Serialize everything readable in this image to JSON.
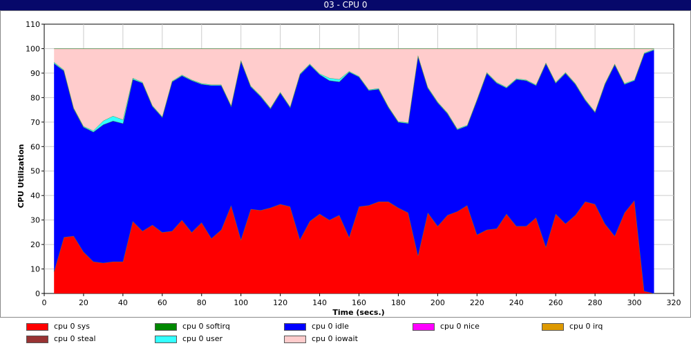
{
  "window": {
    "title": "03 - CPU 0"
  },
  "chart_data": {
    "type": "area",
    "stacked": true,
    "xlabel": "Time (secs.)",
    "ylabel": "CPU Utilization",
    "xlim": [
      0,
      320
    ],
    "ylim": [
      0,
      110
    ],
    "xticks": [
      0,
      20,
      40,
      60,
      80,
      100,
      120,
      140,
      160,
      180,
      200,
      220,
      240,
      260,
      280,
      300,
      320
    ],
    "yticks": [
      0,
      10,
      20,
      30,
      40,
      50,
      60,
      70,
      80,
      90,
      100,
      110
    ],
    "grid": true,
    "legend_position": "bottom",
    "x": [
      5,
      10,
      15,
      20,
      25,
      30,
      35,
      40,
      45,
      50,
      55,
      60,
      65,
      70,
      75,
      80,
      85,
      90,
      95,
      100,
      105,
      110,
      115,
      120,
      125,
      130,
      135,
      140,
      145,
      150,
      155,
      160,
      165,
      170,
      175,
      180,
      185,
      190,
      195,
      200,
      205,
      210,
      215,
      220,
      225,
      230,
      235,
      240,
      245,
      250,
      255,
      260,
      265,
      270,
      275,
      280,
      285,
      290,
      295,
      300,
      305,
      310
    ],
    "series": [
      {
        "name": "cpu 0 sys",
        "color": "#ff0000",
        "values": [
          9,
          23,
          23.5,
          17,
          13,
          12.5,
          13,
          13,
          29.5,
          25.5,
          28,
          25,
          25.5,
          30,
          25,
          29,
          22.5,
          26,
          36,
          22,
          34.5,
          34,
          35,
          36.5,
          35.5,
          22,
          29.5,
          32.5,
          30,
          32,
          23,
          35.5,
          36,
          37.5,
          37.5,
          35,
          33,
          15.5,
          33,
          27.5,
          32,
          33.5,
          36,
          24,
          26,
          26.5,
          32.5,
          27.5,
          27.5,
          31,
          19,
          32.5,
          28.5,
          32,
          37.5,
          36.5,
          28.5,
          23.5,
          33,
          38,
          1,
          0
        ]
      },
      {
        "name": "cpu 0 softirq",
        "color": "#008800",
        "values": [
          0,
          0,
          0,
          0,
          0,
          0,
          0,
          0,
          0,
          0,
          0,
          0,
          0,
          0,
          0,
          0,
          0,
          0,
          0,
          0,
          0,
          0,
          0,
          0,
          0,
          0,
          0,
          0,
          0,
          0,
          0,
          0,
          0,
          0,
          0,
          0,
          0,
          0,
          0,
          0,
          0,
          0,
          0,
          0,
          0,
          0,
          0,
          0,
          0,
          0,
          0,
          0,
          0,
          0,
          0,
          0,
          0,
          0,
          0,
          0,
          0,
          0
        ]
      },
      {
        "name": "cpu 0 idle",
        "color": "#0000ff",
        "values": [
          85,
          68,
          52,
          51,
          53,
          56.5,
          57.5,
          56.5,
          58,
          60.5,
          48.5,
          47,
          61,
          59,
          62,
          56.5,
          62.5,
          59,
          40.5,
          73,
          50,
          46.5,
          40.5,
          45.5,
          40.5,
          67.5,
          64,
          57,
          57,
          54.5,
          67.5,
          53,
          47,
          46,
          38.5,
          35,
          36.5,
          81.5,
          51,
          50.5,
          41.5,
          33.5,
          32.5,
          55,
          64,
          59.5,
          51.5,
          60,
          59.5,
          54,
          75,
          53.5,
          61.5,
          53.5,
          41.5,
          37.5,
          57,
          70,
          52.5,
          49,
          97,
          99.5
        ]
      },
      {
        "name": "cpu 0 nice",
        "color": "#ff00ff",
        "values": [
          0,
          0,
          0,
          0,
          0,
          0,
          0,
          0,
          0,
          0,
          0,
          0,
          0,
          0,
          0,
          0,
          0,
          0,
          0,
          0,
          0,
          0,
          0,
          0,
          0,
          0,
          0,
          0,
          0,
          0,
          0,
          0,
          0,
          0,
          0,
          0,
          0,
          0,
          0,
          0,
          0,
          0,
          0,
          0,
          0,
          0,
          0,
          0,
          0,
          0,
          0,
          0,
          0,
          0,
          0,
          0,
          0,
          0,
          0,
          0,
          0,
          0
        ]
      },
      {
        "name": "cpu 0 irq",
        "color": "#dd9900",
        "values": [
          0,
          0,
          0,
          0,
          0,
          0,
          0,
          0,
          0,
          0,
          0,
          0,
          0,
          0,
          0,
          0,
          0,
          0,
          0,
          0,
          0,
          0,
          0,
          0,
          0,
          0,
          0,
          0,
          0,
          0,
          0,
          0,
          0,
          0,
          0,
          0,
          0,
          0,
          0,
          0,
          0,
          0,
          0,
          0,
          0,
          0,
          0,
          0,
          0,
          0,
          0,
          0,
          0,
          0,
          0,
          0,
          0,
          0,
          0,
          0,
          0,
          0
        ]
      },
      {
        "name": "cpu 0 steal",
        "color": "#993333",
        "values": [
          0,
          0,
          0,
          0,
          0,
          0,
          0,
          0,
          0,
          0,
          0,
          0,
          0,
          0,
          0,
          0,
          0,
          0,
          0,
          0,
          0,
          0,
          0,
          0,
          0,
          0,
          0,
          0,
          0,
          0,
          0,
          0,
          0,
          0,
          0,
          0,
          0,
          0,
          0,
          0,
          0,
          0,
          0,
          0,
          0,
          0,
          0,
          0,
          0,
          0,
          0,
          0,
          0,
          0,
          0,
          0,
          0,
          0,
          0,
          0,
          0,
          0
        ]
      },
      {
        "name": "cpu 0 user",
        "color": "#33ffff",
        "values": [
          0.5,
          0.3,
          0.3,
          0.3,
          0.5,
          1.5,
          2,
          1.5,
          0.5,
          0.3,
          0.3,
          0.3,
          0.3,
          0.3,
          0.3,
          0.3,
          0.3,
          0.3,
          0.3,
          0.3,
          0.3,
          0.3,
          0.3,
          0.3,
          0.3,
          0.3,
          0.3,
          0.3,
          1,
          1,
          0.3,
          0.3,
          0.3,
          0.3,
          0.3,
          0.3,
          0.3,
          0.3,
          0.3,
          0.3,
          0.3,
          0.3,
          0.3,
          0.3,
          0.3,
          0.3,
          0.3,
          0.3,
          0.3,
          0.3,
          0.3,
          0.3,
          0.3,
          0.3,
          0.3,
          0.3,
          0.3,
          0.3,
          0.3,
          0.3,
          0.3,
          0.3
        ]
      },
      {
        "name": "cpu 0 iowait",
        "color": "#ffcccc",
        "values": [
          5.5,
          8.7,
          24.2,
          31.7,
          33.5,
          29.5,
          27.5,
          29,
          12,
          13.7,
          23.2,
          27.7,
          13.2,
          10.7,
          12.7,
          14.2,
          14.7,
          14.7,
          23.2,
          4.7,
          15.2,
          19.2,
          24.2,
          17.7,
          23.7,
          10.2,
          6.2,
          10.2,
          12,
          12.5,
          9.2,
          11.2,
          16.7,
          16.2,
          23.7,
          29.7,
          30.2,
          2.7,
          15.7,
          21.7,
          26.2,
          32.7,
          31.2,
          20.7,
          9.7,
          13.7,
          15.7,
          12.2,
          12.7,
          14.7,
          5.7,
          13.7,
          9.7,
          14.2,
          20.7,
          25.7,
          14.2,
          6.2,
          14.2,
          12.7,
          1.7,
          0.2
        ]
      }
    ]
  }
}
